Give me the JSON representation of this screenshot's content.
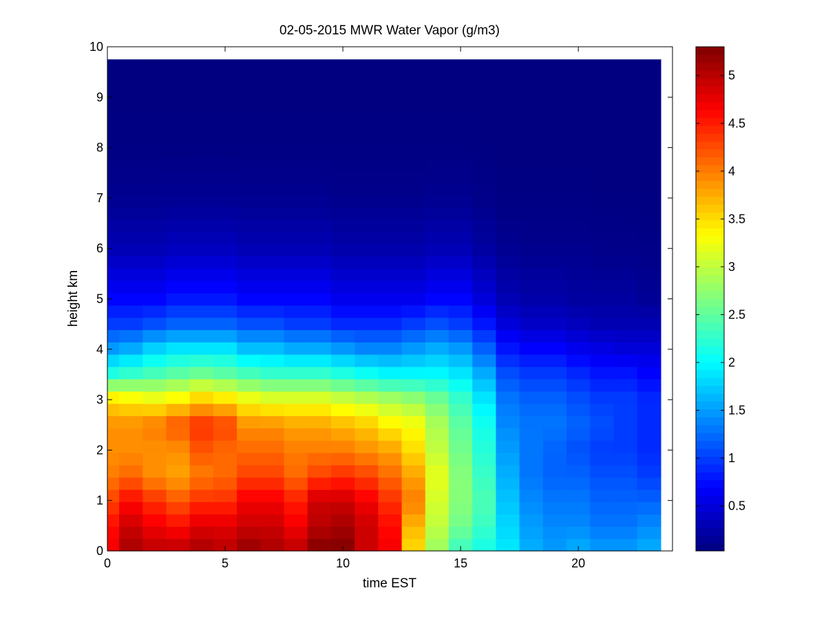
{
  "chart_data": {
    "type": "heatmap",
    "title": "02-05-2015 MWR Water Vapor (g/m3)",
    "xlabel": "time EST",
    "ylabel": "height km",
    "xlim": [
      0,
      24
    ],
    "ylim": [
      0,
      10
    ],
    "x_ticks": [
      0,
      5,
      10,
      15,
      20
    ],
    "y_ticks": [
      0,
      1,
      2,
      3,
      4,
      5,
      6,
      7,
      8,
      9,
      10
    ],
    "colormap": "jet",
    "colorbar": {
      "range": [
        0.03,
        5.3
      ],
      "ticks": [
        0.5,
        1,
        1.5,
        2,
        2.5,
        3,
        3.5,
        4,
        4.5,
        5
      ],
      "tick_labels": [
        "0.5",
        "1",
        "1.5",
        "2",
        "2.5",
        "3",
        "3.5",
        "4",
        "4.5",
        "5"
      ]
    },
    "time_hours": [
      0,
      1,
      2,
      3,
      4,
      5,
      6,
      7,
      8,
      9,
      10,
      11,
      12,
      13,
      14,
      15,
      16,
      17,
      18,
      19,
      20,
      21,
      22,
      23
    ],
    "profiles": {
      "heights_km": [
        0,
        0.5,
        1,
        1.5,
        2,
        2.5,
        3,
        3.5,
        4,
        4.5,
        5,
        6,
        7,
        8,
        9.75
      ],
      "values_by_time": [
        [
          4.7,
          4.6,
          4.3,
          4.0,
          3.9,
          3.9,
          3.5,
          2.2,
          1.5,
          1.0,
          0.7,
          0.3,
          0.12,
          0.05,
          0.03
        ],
        [
          5.1,
          4.9,
          4.6,
          4.1,
          3.9,
          3.9,
          3.4,
          2.3,
          1.6,
          1.0,
          0.7,
          0.3,
          0.12,
          0.05,
          0.03
        ],
        [
          5.0,
          4.7,
          4.4,
          3.9,
          3.9,
          4.0,
          3.3,
          2.4,
          1.8,
          1.1,
          0.7,
          0.3,
          0.12,
          0.05,
          0.03
        ],
        [
          5.0,
          4.6,
          4.2,
          3.8,
          3.9,
          4.2,
          3.4,
          2.5,
          1.9,
          1.2,
          0.8,
          0.35,
          0.13,
          0.05,
          0.03
        ],
        [
          5.1,
          4.8,
          4.4,
          4.0,
          4.2,
          4.4,
          3.6,
          2.6,
          1.9,
          1.2,
          0.8,
          0.35,
          0.13,
          0.05,
          0.03
        ],
        [
          5.0,
          4.8,
          4.4,
          4.1,
          4.1,
          4.3,
          3.5,
          2.5,
          1.9,
          1.2,
          0.8,
          0.35,
          0.13,
          0.05,
          0.03
        ],
        [
          5.2,
          4.9,
          4.7,
          4.3,
          4.1,
          3.9,
          3.3,
          2.4,
          1.7,
          1.1,
          0.7,
          0.3,
          0.12,
          0.05,
          0.03
        ],
        [
          5.1,
          4.9,
          4.7,
          4.3,
          4.1,
          3.9,
          3.2,
          2.3,
          1.7,
          1.1,
          0.7,
          0.3,
          0.12,
          0.05,
          0.03
        ],
        [
          5.0,
          4.7,
          4.5,
          4.1,
          4.0,
          3.8,
          3.2,
          2.3,
          1.6,
          1.0,
          0.7,
          0.3,
          0.12,
          0.05,
          0.03
        ],
        [
          5.3,
          5.0,
          4.9,
          4.3,
          4.0,
          3.8,
          3.2,
          2.3,
          1.6,
          1.0,
          0.7,
          0.3,
          0.12,
          0.05,
          0.03
        ],
        [
          5.3,
          5.1,
          4.9,
          4.4,
          4.0,
          3.7,
          3.1,
          2.2,
          1.5,
          0.9,
          0.6,
          0.25,
          0.1,
          0.05,
          0.03
        ],
        [
          4.9,
          4.9,
          4.7,
          4.3,
          3.9,
          3.6,
          3.0,
          2.1,
          1.4,
          0.9,
          0.6,
          0.25,
          0.1,
          0.05,
          0.03
        ],
        [
          4.7,
          4.6,
          4.4,
          4.1,
          3.8,
          3.4,
          2.9,
          2.0,
          1.4,
          0.9,
          0.6,
          0.25,
          0.1,
          0.05,
          0.03
        ],
        [
          3.5,
          3.7,
          4.0,
          3.8,
          3.5,
          3.3,
          2.8,
          2.0,
          1.5,
          1.0,
          0.6,
          0.25,
          0.1,
          0.05,
          0.03
        ],
        [
          2.8,
          3.0,
          3.1,
          3.2,
          3.0,
          2.9,
          2.6,
          2.0,
          1.6,
          1.1,
          0.7,
          0.3,
          0.12,
          0.05,
          0.03
        ],
        [
          2.3,
          2.6,
          2.7,
          2.7,
          2.6,
          2.5,
          2.3,
          1.9,
          1.5,
          1.0,
          0.7,
          0.3,
          0.12,
          0.05,
          0.03
        ],
        [
          2.1,
          2.3,
          2.4,
          2.3,
          2.2,
          2.1,
          1.9,
          1.6,
          1.2,
          0.8,
          0.5,
          0.2,
          0.08,
          0.04,
          0.03
        ],
        [
          1.9,
          1.8,
          1.7,
          1.6,
          1.5,
          1.4,
          1.3,
          1.1,
          0.8,
          0.5,
          0.3,
          0.12,
          0.05,
          0.03,
          0.03
        ],
        [
          1.6,
          1.5,
          1.4,
          1.3,
          1.3,
          1.3,
          1.2,
          1.0,
          0.7,
          0.4,
          0.25,
          0.1,
          0.05,
          0.03,
          0.03
        ],
        [
          1.5,
          1.4,
          1.3,
          1.2,
          1.2,
          1.3,
          1.2,
          1.0,
          0.7,
          0.4,
          0.25,
          0.1,
          0.05,
          0.03,
          0.03
        ],
        [
          1.6,
          1.4,
          1.3,
          1.2,
          1.1,
          1.2,
          1.1,
          0.9,
          0.6,
          0.35,
          0.2,
          0.1,
          0.05,
          0.03,
          0.03
        ],
        [
          1.5,
          1.3,
          1.2,
          1.1,
          1.0,
          1.1,
          1.0,
          0.8,
          0.55,
          0.3,
          0.2,
          0.08,
          0.04,
          0.03,
          0.03
        ],
        [
          1.5,
          1.3,
          1.2,
          1.1,
          1.0,
          1.0,
          1.0,
          0.8,
          0.5,
          0.3,
          0.2,
          0.08,
          0.04,
          0.03,
          0.03
        ],
        [
          1.6,
          1.4,
          1.2,
          1.0,
          0.9,
          0.9,
          0.9,
          0.7,
          0.5,
          0.3,
          0.15,
          0.07,
          0.04,
          0.03,
          0.03
        ]
      ]
    }
  }
}
